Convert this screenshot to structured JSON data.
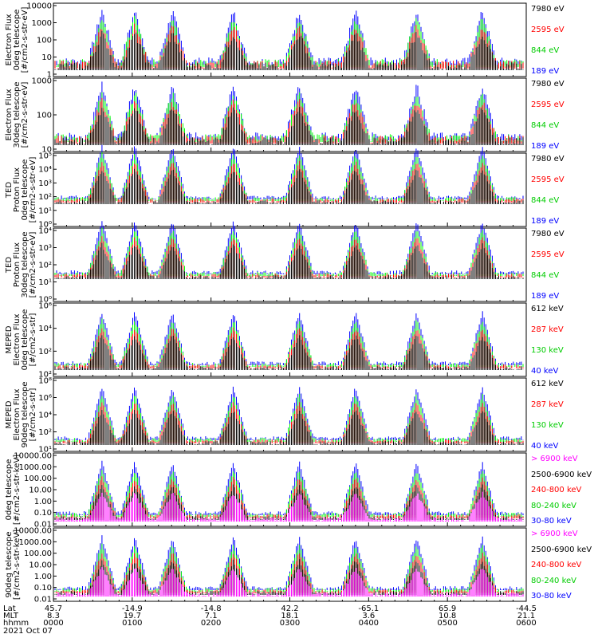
{
  "colors": {
    "black": "#000000",
    "red": "#ff0000",
    "green": "#00ff00",
    "blue": "#0000ff",
    "magenta": "#ff00ff"
  },
  "chart_data": [
    {
      "type": "line",
      "ylabel": [
        "Electron Flux",
        "0deg telescope",
        "[#/cm2-s-str-eV]"
      ],
      "yscale": "log",
      "ylim": [
        1,
        10000
      ],
      "ticks": [
        "10000",
        "1000",
        "100",
        "10",
        "1"
      ],
      "legend": [
        {
          "text": "7980 eV",
          "color": "#000000"
        },
        {
          "text": "2595 eV",
          "color": "#ff0000"
        },
        {
          "text": "844 eV",
          "color": "#00aa00"
        },
        {
          "text": "189 eV",
          "color": "#0000ff"
        }
      ]
    },
    {
      "type": "line",
      "ylabel": [
        "Electron Flux",
        "30deg telescope",
        "[#/cm2-s-str-eV]"
      ],
      "yscale": "log",
      "ylim": [
        1,
        10000
      ],
      "ticks": [
        "1000",
        "100",
        "10"
      ],
      "legend": [
        {
          "text": "7980 eV",
          "color": "#000000"
        },
        {
          "text": "2595 eV",
          "color": "#ff0000"
        },
        {
          "text": "844 eV",
          "color": "#00aa00"
        },
        {
          "text": "189 eV",
          "color": "#0000ff"
        }
      ]
    },
    {
      "type": "line",
      "ylabel": [
        "TED",
        "Proton Flux",
        "0deg telescope",
        "[#/cm2-s-str-eV]"
      ],
      "yscale": "log",
      "ylim": [
        1,
        100000
      ],
      "ticks": [
        "10⁵",
        "10⁴",
        "10³",
        "10²",
        "10¹",
        "10⁰"
      ],
      "legend": [
        {
          "text": "7980 eV",
          "color": "#000000"
        },
        {
          "text": "2595 eV",
          "color": "#ff0000"
        },
        {
          "text": "844 eV",
          "color": "#00aa00"
        },
        {
          "text": "189 eV",
          "color": "#0000ff"
        }
      ]
    },
    {
      "type": "line",
      "ylabel": [
        "TED",
        "Proton Flux",
        "30deg telescope",
        "[#/cm2-s-str-eV]"
      ],
      "yscale": "log",
      "ylim": [
        1,
        100000
      ],
      "ticks": [
        "10⁴",
        "10³",
        "10²",
        "10¹",
        "10⁰"
      ],
      "legend": [
        {
          "text": "7980 eV",
          "color": "#000000"
        },
        {
          "text": "2595 eV",
          "color": "#ff0000"
        },
        {
          "text": "844 eV",
          "color": "#00aa00"
        },
        {
          "text": "189 eV",
          "color": "#0000ff"
        }
      ]
    },
    {
      "type": "line",
      "ylabel": [
        "MEPED",
        "Electron Flux",
        "0deg telescope",
        "[#/cm2-s-str]"
      ],
      "yscale": "log",
      "ylim": [
        10,
        10000000
      ],
      "ticks": [
        "10⁶",
        "10⁴",
        "10²",
        "10²"
      ],
      "legend": [
        {
          "text": "612 keV",
          "color": "#000000"
        },
        {
          "text": "287 keV",
          "color": "#ff0000"
        },
        {
          "text": "130 keV",
          "color": "#00aa00"
        },
        {
          "text": "40 keV",
          "color": "#0000ff"
        }
      ]
    },
    {
      "type": "line",
      "ylabel": [
        "MEPED",
        "Electron Flux",
        "90deg telescope",
        "[#/cm2-s-str]"
      ],
      "yscale": "log",
      "ylim": [
        10,
        10000000
      ],
      "ticks": [
        "10⁸",
        "10⁶",
        "10⁴",
        "10²",
        "10¹"
      ],
      "legend": [
        {
          "text": "612 keV",
          "color": "#000000"
        },
        {
          "text": "287 keV",
          "color": "#ff0000"
        },
        {
          "text": "130 keV",
          "color": "#00aa00"
        },
        {
          "text": "40 keV",
          "color": "#0000ff"
        }
      ]
    },
    {
      "type": "line",
      "ylabel": [
        "0deg telescope",
        "[#/cm2-s-str-keV]"
      ],
      "yscale": "log",
      "ylim": [
        0.01,
        10000
      ],
      "ticks": [
        "10000.00",
        "1000.00",
        "100.00",
        "10.00",
        "1.00",
        "0.10",
        "0.01"
      ],
      "legend": [
        {
          "text": "> 6900 keV",
          "color": "#ff00ff"
        },
        {
          "text": "2500-6900 keV",
          "color": "#000000"
        },
        {
          "text": "240-800 keV",
          "color": "#ff0000"
        },
        {
          "text": "80-240 keV",
          "color": "#00aa00"
        },
        {
          "text": "30-80 keV",
          "color": "#0000ff"
        }
      ]
    },
    {
      "type": "line",
      "ylabel": [
        "90deg telescope",
        "[#/cm2-s-str-keV]"
      ],
      "yscale": "log",
      "ylim": [
        0.01,
        10000
      ],
      "ticks": [
        "10000.00",
        "1000.00",
        "100.00",
        "10.00",
        "1.00",
        "0.10",
        "0.01"
      ],
      "legend": [
        {
          "text": "> 6900 keV",
          "color": "#ff00ff"
        },
        {
          "text": "2500-6900 keV",
          "color": "#000000"
        },
        {
          "text": "240-800 keV",
          "color": "#ff0000"
        },
        {
          "text": "80-240 keV",
          "color": "#00aa00"
        },
        {
          "text": "30-80 keV",
          "color": "#0000ff"
        }
      ]
    }
  ],
  "x_axis": {
    "row_labels": [
      "Lat",
      "MLT",
      "hhmm"
    ],
    "ticks": [
      {
        "lat": "45.7",
        "mlt": "8.3",
        "hhmm": "0000"
      },
      {
        "lat": "-14.9",
        "mlt": "19.7",
        "hhmm": "0100"
      },
      {
        "lat": "-14.8",
        "mlt": "7.1",
        "hhmm": "0200"
      },
      {
        "lat": "42.2",
        "mlt": "18.1",
        "hhmm": "0300"
      },
      {
        "lat": "-65.1",
        "mlt": "3.6",
        "hhmm": "0400"
      },
      {
        "lat": "65.9",
        "mlt": "10.8",
        "hhmm": "0500"
      },
      {
        "lat": "-44.5",
        "mlt": "21.1",
        "hhmm": "0600"
      }
    ],
    "date": "2021 Oct 07"
  }
}
